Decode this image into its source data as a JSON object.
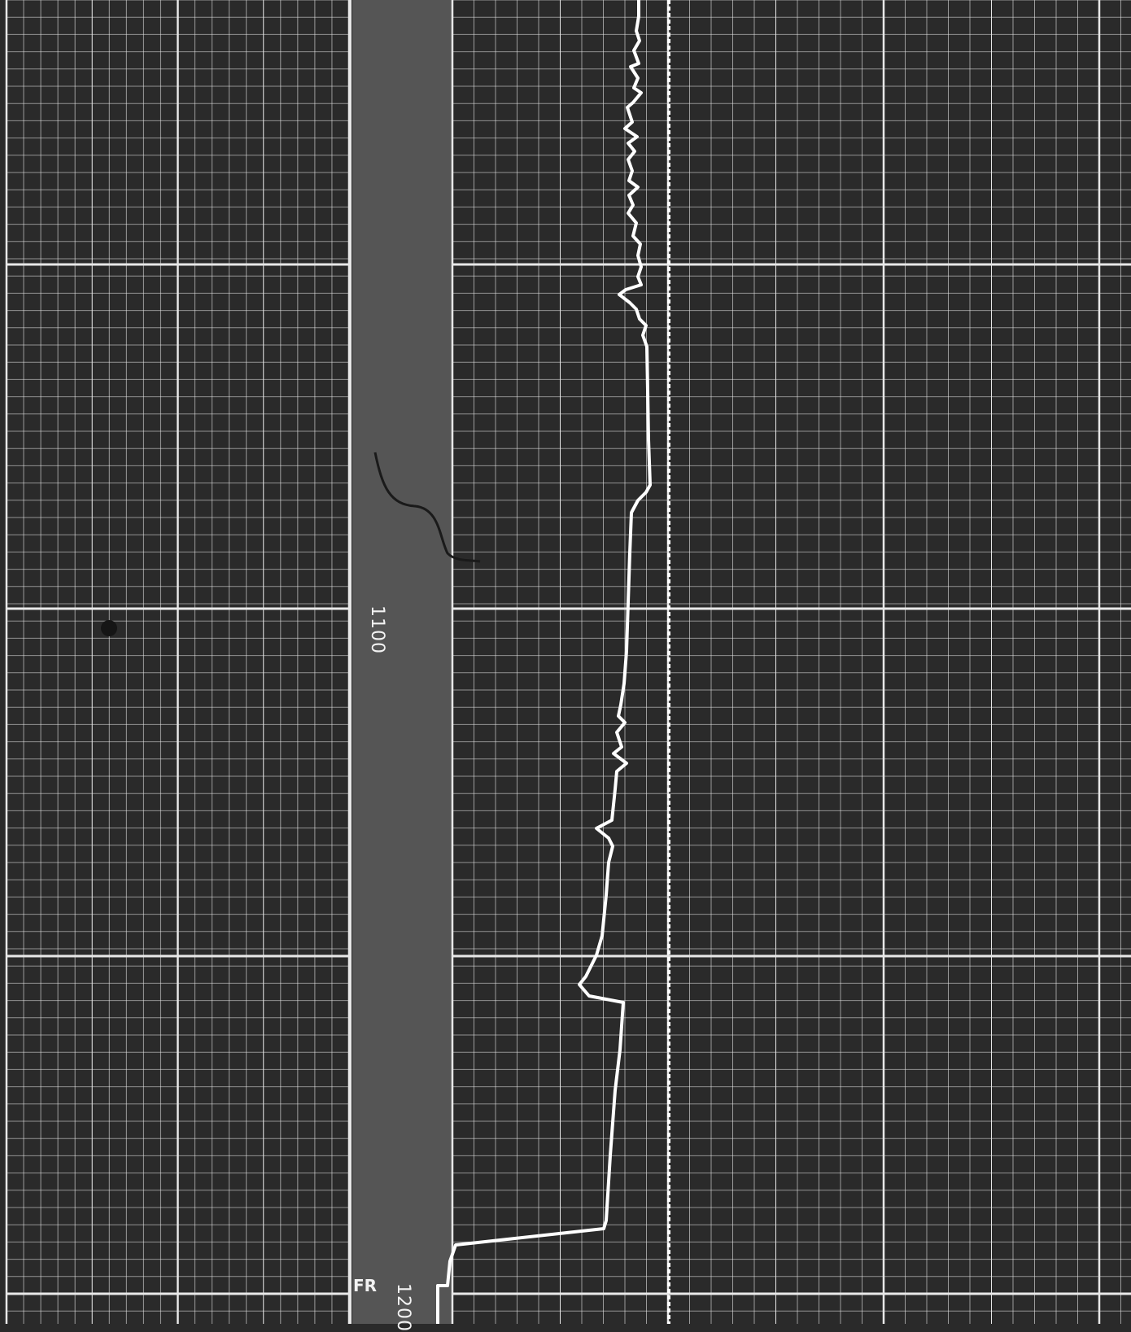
{
  "log": {
    "depth_marks": [
      {
        "label": "1100"
      },
      {
        "label": "1200"
      }
    ],
    "formation_marker": {
      "label": "FR"
    },
    "colors": {
      "background": "#2a2a2a",
      "depth_track": "#555555",
      "grid": "#e8e8e8",
      "curve": "#ffffff"
    }
  }
}
